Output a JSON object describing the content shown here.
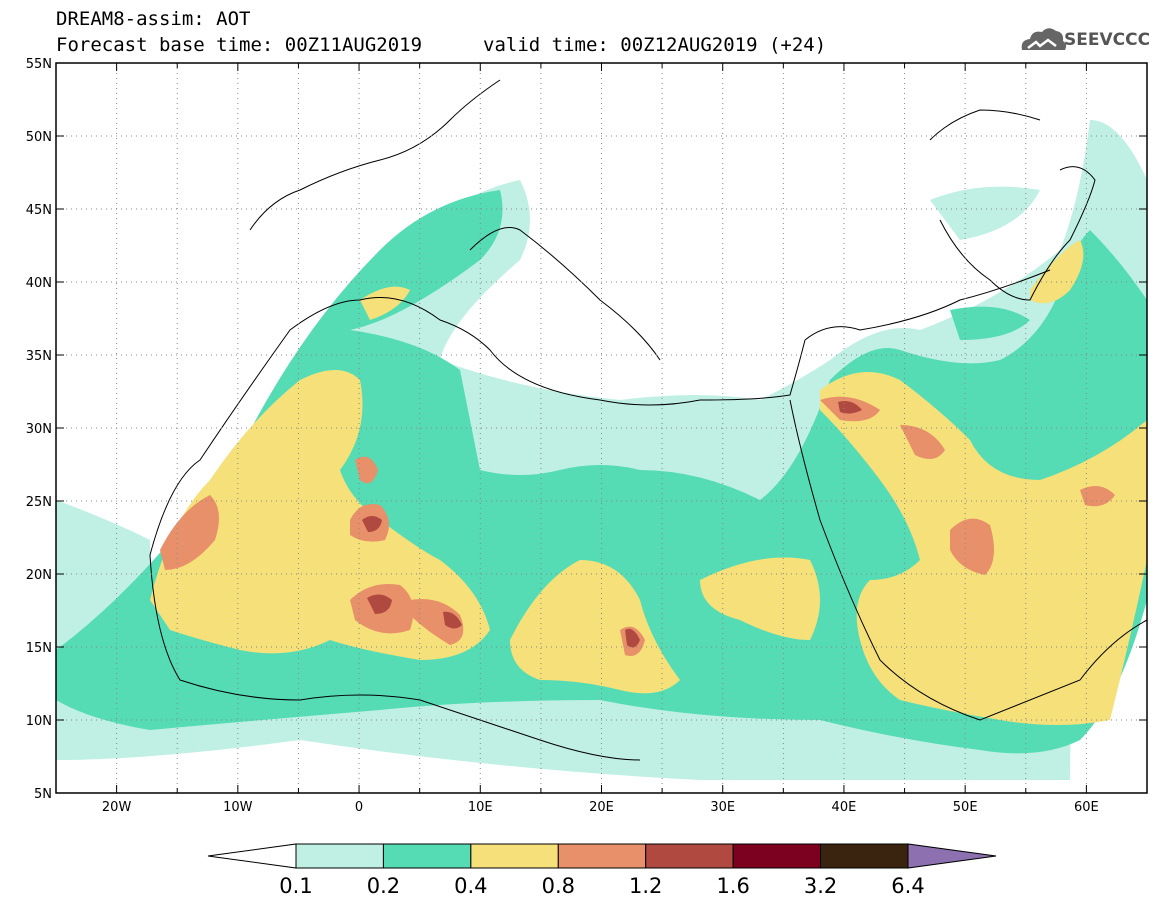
{
  "header": {
    "title_line1": "DREAM8-assim: AOT",
    "title_line2": "Forecast base time: 00Z11AUG2019",
    "valid_time": "valid time: 00Z12AUG2019 (+24)"
  },
  "logo": {
    "text": "SEEVCCC",
    "icon": "cloud-icon"
  },
  "axes": {
    "lon_labels": [
      "20W",
      "10W",
      "0",
      "10E",
      "20E",
      "30E",
      "40E",
      "50E",
      "60E"
    ],
    "lon_values": [
      -20,
      -10,
      0,
      10,
      20,
      30,
      40,
      50,
      60
    ],
    "lat_labels": [
      "55N",
      "50N",
      "45N",
      "40N",
      "35N",
      "30N",
      "25N",
      "20N",
      "15N",
      "10N",
      "5N"
    ],
    "lat_values": [
      55,
      50,
      45,
      40,
      35,
      30,
      25,
      20,
      15,
      10,
      5
    ],
    "lon_range": [
      -25,
      65
    ],
    "lat_range": [
      5,
      55
    ],
    "grid": "dotted"
  },
  "colorbar": {
    "labels": [
      "0.1",
      "0.2",
      "0.4",
      "0.8",
      "1.2",
      "1.6",
      "3.2",
      "6.4"
    ],
    "colors": [
      "#ffffff",
      "#bff0e3",
      "#55dcb4",
      "#f5e07a",
      "#e8906a",
      "#b04a40",
      "#7c0020",
      "#3a2410",
      "#8c70b0"
    ]
  }
}
